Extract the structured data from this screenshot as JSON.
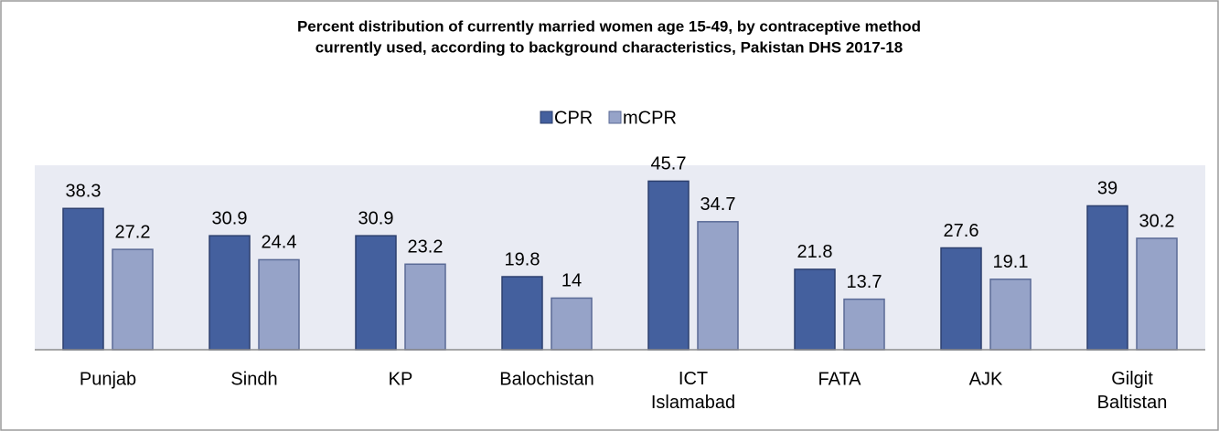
{
  "chart_data": {
    "type": "bar",
    "title": [
      "Percent distribution of currently married women age 15-49, by contraceptive method",
      "currently used, according to background characteristics, Pakistan DHS 2017-18"
    ],
    "categories": [
      "Punjab",
      "Sindh",
      "KP",
      "Balochistan",
      "ICT Islamabad",
      "FATA",
      "AJK",
      "Gilgit Baltistan"
    ],
    "series": [
      {
        "name": "CPR",
        "color": "#44609e",
        "values": [
          38.3,
          30.9,
          30.9,
          19.8,
          45.7,
          21.8,
          27.6,
          39
        ]
      },
      {
        "name": "mCPR",
        "color": "#96a3c8",
        "values": [
          27.2,
          24.4,
          23.2,
          14,
          34.7,
          13.7,
          19.1,
          30.2
        ]
      }
    ],
    "ylim": [
      0,
      50
    ],
    "legend": "top"
  }
}
